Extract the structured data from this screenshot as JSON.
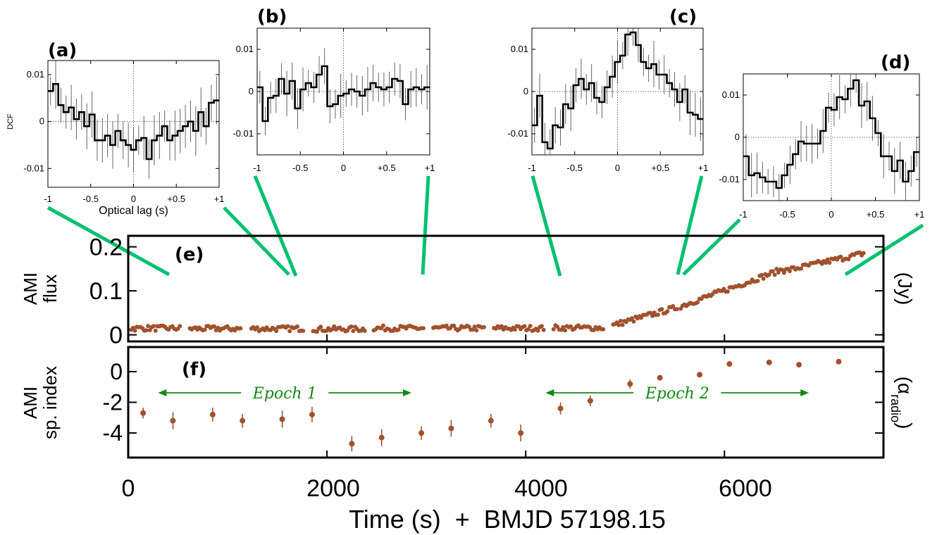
{
  "figure": {
    "xaxis_title": "Time (s)  +  BMJD 57198.15",
    "x_ticks": [
      "0",
      "2000",
      "4000",
      "6000"
    ],
    "colors": {
      "points": "#a0522d",
      "zoom_lines": "#00c070",
      "epoch": "#138a13",
      "axes": "#000000"
    }
  },
  "chart_data": [
    {
      "id": "a",
      "type": "line",
      "step": true,
      "panel_label": "(a)",
      "ylabel": "DCF",
      "xlabel": "Optical lag (s)",
      "xlim": [
        -1,
        1
      ],
      "ylim": [
        -0.014,
        0.013
      ],
      "x_ticks": [
        "-1",
        "-0.5",
        "0",
        "+0.5",
        "+1"
      ],
      "y_ticks": [
        "0.01",
        "0",
        "-0.01"
      ],
      "y_tick_values": [
        0.01,
        0,
        -0.01
      ],
      "values": [
        0.0065,
        0.008,
        0.0035,
        0.002,
        0.003,
        0.0005,
        0.002,
        -0.001,
        0.0015,
        -0.004,
        -0.004,
        -0.003,
        -0.005,
        -0.002,
        -0.004,
        -0.005,
        -0.006,
        -0.004,
        -0.0035,
        -0.008,
        -0.004,
        -0.003,
        -0.001,
        -0.004,
        -0.003,
        -0.002,
        -0.001,
        0.0,
        -0.002,
        0.002,
        -0.001,
        0.004,
        0.0045
      ]
    },
    {
      "id": "b",
      "type": "line",
      "step": true,
      "panel_label": "(b)",
      "xlim": [
        -1,
        1
      ],
      "ylim": [
        -0.015,
        0.015
      ],
      "x_ticks": [
        "-1",
        "-0.5",
        "0",
        "+0.5",
        "+1"
      ],
      "y_ticks": [
        "0.01",
        "0",
        "-0.01"
      ],
      "y_tick_values": [
        0.01,
        0,
        -0.01
      ],
      "values": [
        0.001,
        -0.007,
        -0.0015,
        -0.001,
        0.003,
        -0.0005,
        0.0025,
        -0.004,
        0.0005,
        0.002,
        0.001,
        0.004,
        0.006,
        -0.0035,
        -0.003,
        -0.001,
        -0.0005,
        0.0005,
        0.0,
        -0.001,
        0.0005,
        0.002,
        0.001,
        0.0005,
        0.001,
        0.003,
        0.0025,
        -0.003,
        0.0005,
        0.001,
        0.0005,
        0.001
      ]
    },
    {
      "id": "c",
      "type": "line",
      "step": true,
      "panel_label": "(c)",
      "xlim": [
        -1,
        1
      ],
      "ylim": [
        -0.015,
        0.015
      ],
      "x_ticks": [
        "-1",
        "-0.5",
        "0",
        "+0.5",
        "+1"
      ],
      "y_ticks": [
        "0.01",
        "0",
        "-0.01"
      ],
      "y_tick_values": [
        0.01,
        0,
        -0.01
      ],
      "values": [
        -0.008,
        -0.001,
        -0.012,
        -0.0135,
        -0.008,
        -0.0085,
        -0.003,
        -0.004,
        0.0015,
        0.003,
        0.0005,
        0.002,
        -0.0015,
        -0.0025,
        0.001,
        0.0035,
        0.007,
        0.0085,
        0.0135,
        0.014,
        0.011,
        0.007,
        0.0055,
        0.0065,
        0.004,
        0.004,
        0.002,
        0.0005,
        -0.0025,
        0.0005,
        -0.005,
        -0.0055,
        -0.0065
      ]
    },
    {
      "id": "d",
      "type": "line",
      "step": true,
      "panel_label": "(d)",
      "xlim": [
        -1,
        1
      ],
      "ylim": [
        -0.015,
        0.015
      ],
      "x_ticks": [
        "-1",
        "-0.5",
        "0",
        "+0.5",
        "+1"
      ],
      "y_ticks": [
        "0.01",
        "0",
        "-0.01"
      ],
      "y_tick_values": [
        0.01,
        0,
        -0.01
      ],
      "values": [
        -0.0045,
        -0.009,
        -0.0085,
        -0.0095,
        -0.0105,
        -0.0105,
        -0.012,
        -0.009,
        -0.0065,
        -0.004,
        -0.001,
        -0.0015,
        -0.0015,
        -0.0015,
        0.0015,
        0.007,
        0.0065,
        0.0095,
        0.009,
        0.0115,
        0.0135,
        0.0075,
        0.0085,
        0.0045,
        0.001,
        -0.0045,
        -0.0045,
        -0.008,
        -0.0055,
        -0.0105,
        -0.008,
        -0.0035
      ]
    },
    {
      "id": "e",
      "type": "scatter",
      "panel_label": "(e)",
      "ylabel": [
        "AMI",
        "flux"
      ],
      "ylabel_right": "(Jy)",
      "xlim": [
        0,
        7600
      ],
      "ylim": [
        -0.015,
        0.225
      ],
      "y_ticks": [
        "0.2",
        "0.1",
        "0"
      ],
      "y_tick_values": [
        0.2,
        0.1,
        0.0
      ],
      "segments": [
        {
          "x0": 30,
          "x1": 520,
          "base": 0.015
        },
        {
          "x0": 620,
          "x1": 1130,
          "base": 0.014
        },
        {
          "x0": 1240,
          "x1": 1760,
          "base": 0.014
        },
        {
          "x0": 1860,
          "x1": 2380,
          "base": 0.013
        },
        {
          "x0": 2470,
          "x1": 2970,
          "base": 0.015
        },
        {
          "x0": 3070,
          "x1": 3580,
          "base": 0.015
        },
        {
          "x0": 3680,
          "x1": 4180,
          "base": 0.015
        },
        {
          "x0": 4280,
          "x1": 4780,
          "base": 0.016
        },
        {
          "x0": 4880,
          "x1": 5520,
          "base": 0.03
        },
        {
          "x0": 5560,
          "x1": 6600,
          "base": 0.09
        },
        {
          "x0": 6600,
          "x1": 7400,
          "base": 0.14
        }
      ]
    },
    {
      "id": "f",
      "type": "scatter",
      "panel_label": "(f)",
      "ylabel": [
        "AMI",
        "sp. index"
      ],
      "ylabel_right": "(α",
      "ylabel_right_sub": "radio",
      "ylabel_right_close": ")",
      "xlim": [
        0,
        7600
      ],
      "ylim": [
        -5.6,
        1.6
      ],
      "y_ticks": [
        "0",
        "-2",
        "-4"
      ],
      "y_tick_values": [
        0,
        -2,
        -4
      ],
      "points": [
        {
          "x": 150,
          "y": -2.7,
          "err": 0.35
        },
        {
          "x": 450,
          "y": -3.2,
          "err": 0.55
        },
        {
          "x": 850,
          "y": -2.8,
          "err": 0.45
        },
        {
          "x": 1150,
          "y": -3.2,
          "err": 0.45
        },
        {
          "x": 1550,
          "y": -3.1,
          "err": 0.55
        },
        {
          "x": 1850,
          "y": -2.8,
          "err": 0.5
        },
        {
          "x": 2250,
          "y": -4.7,
          "err": 0.5
        },
        {
          "x": 2550,
          "y": -4.3,
          "err": 0.55
        },
        {
          "x": 2950,
          "y": -4.0,
          "err": 0.45
        },
        {
          "x": 3250,
          "y": -3.7,
          "err": 0.55
        },
        {
          "x": 3650,
          "y": -3.2,
          "err": 0.45
        },
        {
          "x": 3950,
          "y": -4.0,
          "err": 0.55
        },
        {
          "x": 4350,
          "y": -2.4,
          "err": 0.4
        },
        {
          "x": 4650,
          "y": -1.9,
          "err": 0.35
        },
        {
          "x": 5050,
          "y": -0.8,
          "err": 0.3
        },
        {
          "x": 5350,
          "y": -0.4,
          "err": 0.15
        },
        {
          "x": 5750,
          "y": -0.2,
          "err": 0.15
        },
        {
          "x": 6050,
          "y": 0.5,
          "err": 0.1
        },
        {
          "x": 6450,
          "y": 0.6,
          "err": 0.1
        },
        {
          "x": 6750,
          "y": 0.45,
          "err": 0.1
        },
        {
          "x": 7150,
          "y": 0.65,
          "err": 0.1
        }
      ],
      "annotations": [
        {
          "text": "Epoch 1",
          "x_from": 300,
          "x_to": 2850
        },
        {
          "text": "Epoch 2",
          "x_from": 4200,
          "x_to": 6850
        }
      ]
    }
  ]
}
